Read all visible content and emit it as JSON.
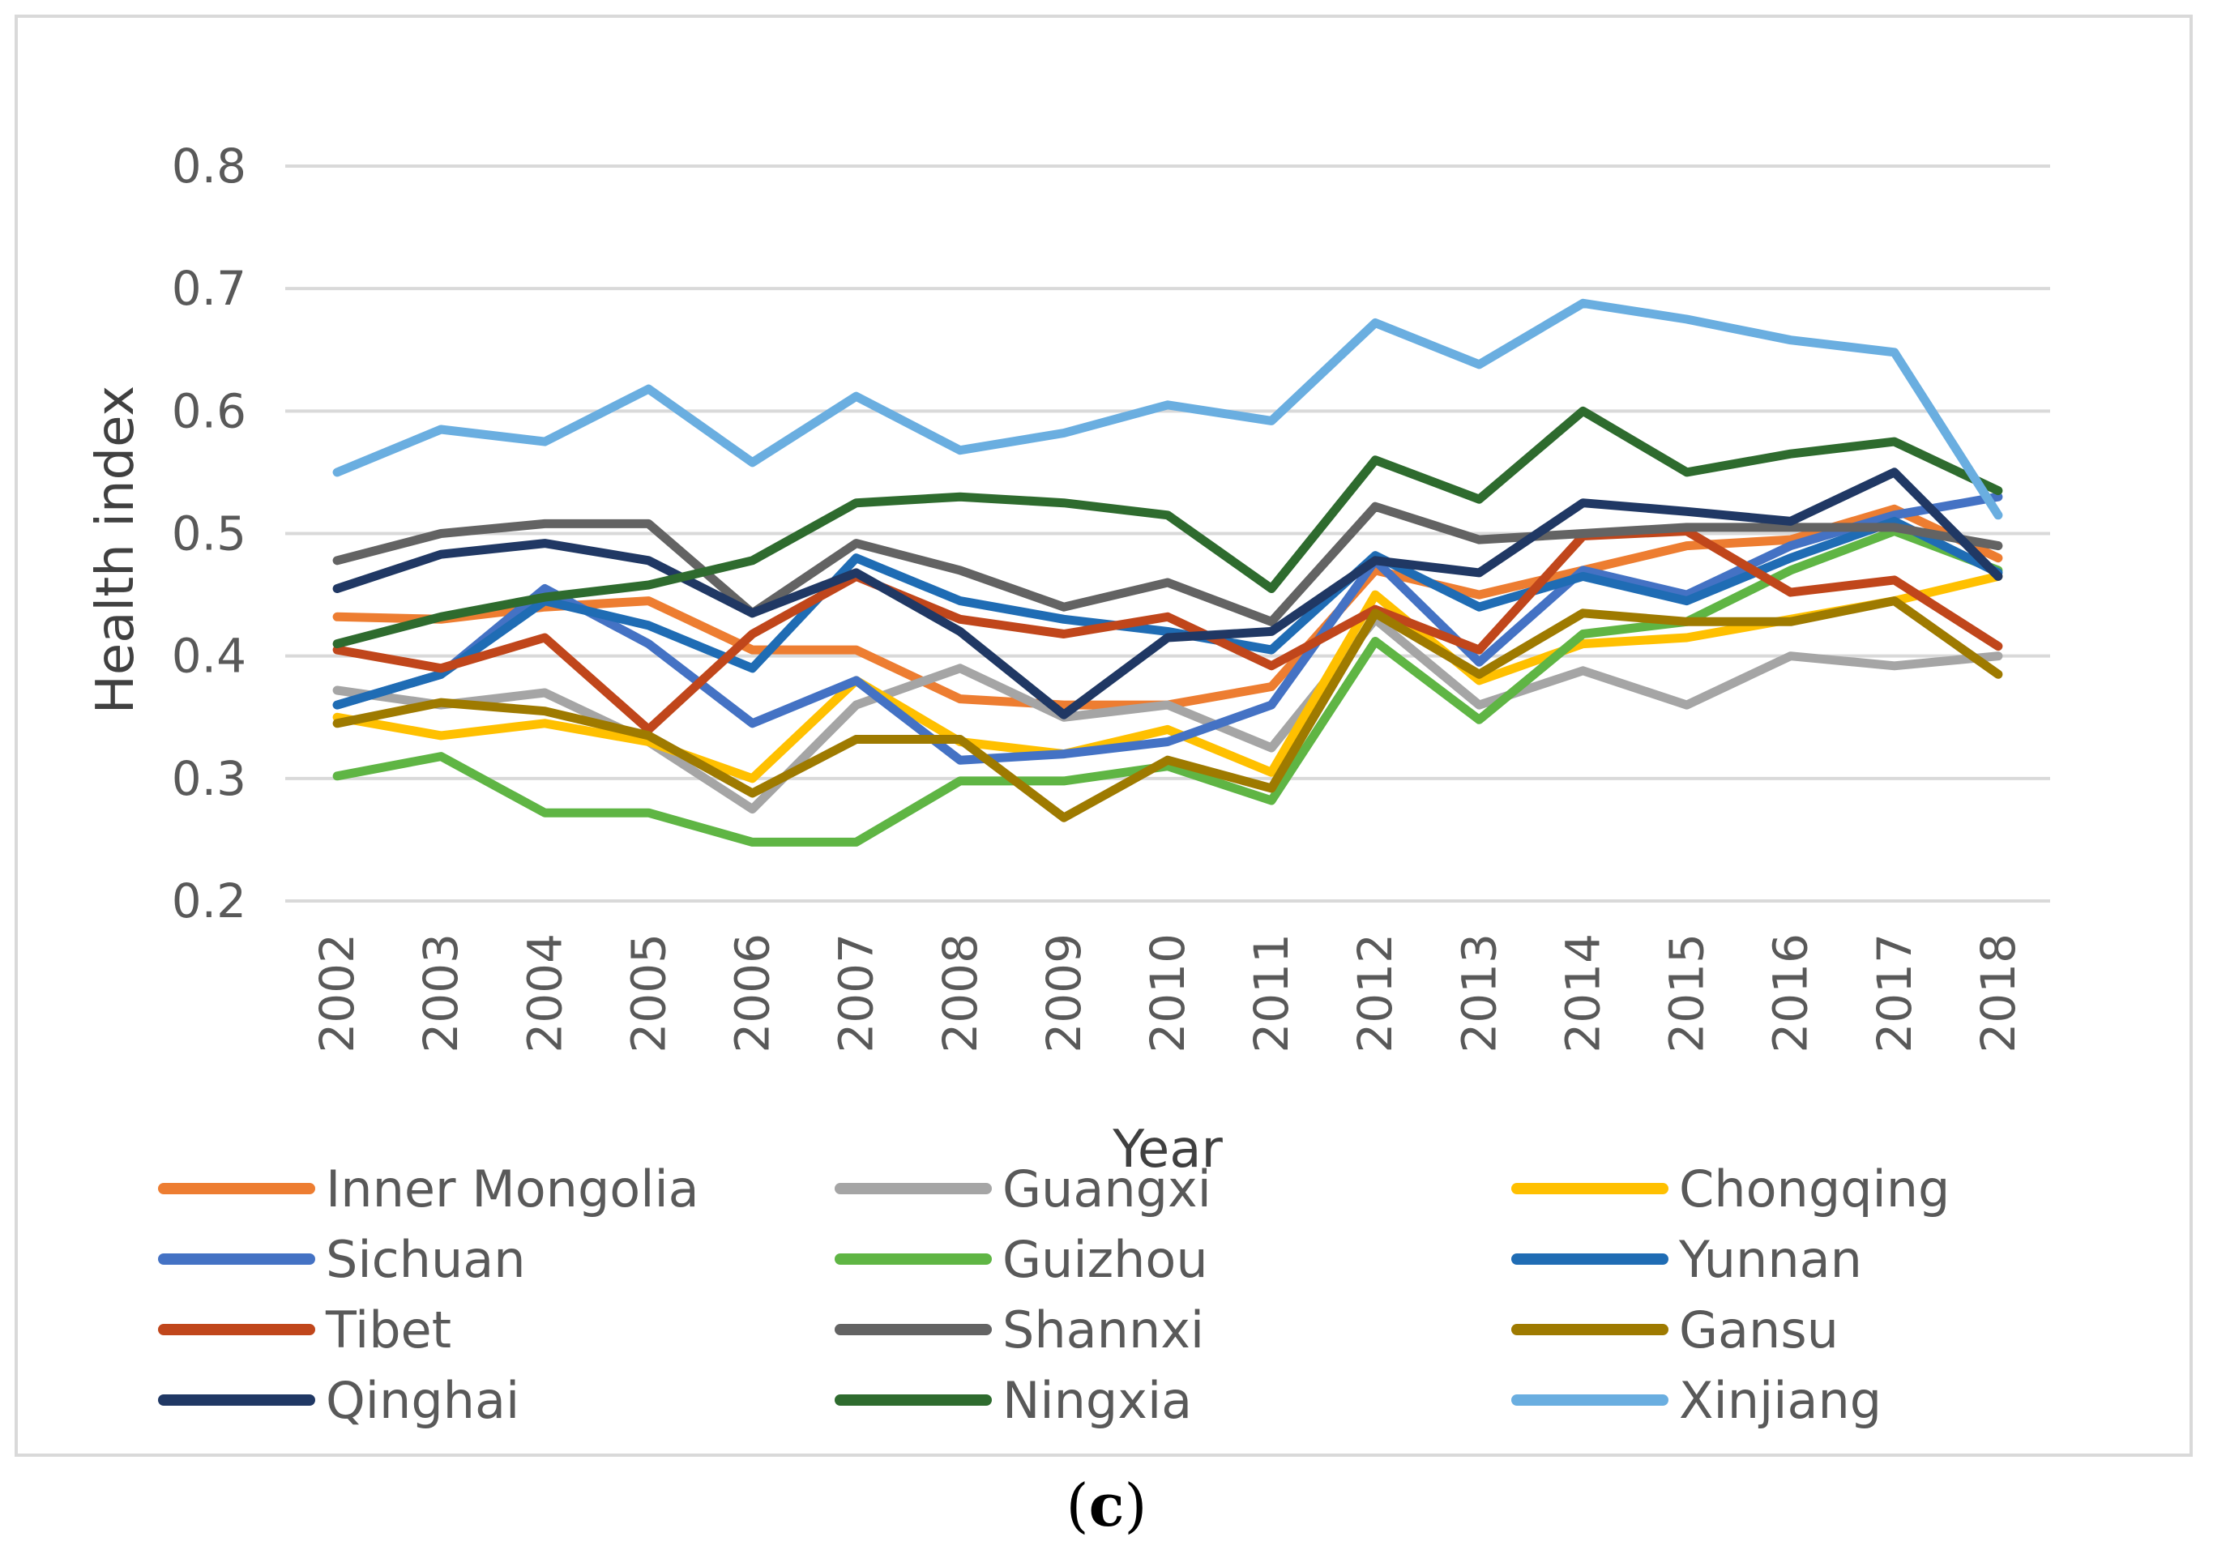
{
  "chart_data": {
    "type": "line",
    "title": "",
    "xlabel": "Year",
    "ylabel": "Health index",
    "ylim": [
      0.2,
      0.8
    ],
    "yticks": [
      "0.2",
      "0.3",
      "0.4",
      "0.5",
      "0.6",
      "0.7",
      "0.8"
    ],
    "grid": true,
    "legend_position": "bottom",
    "categories": [
      "2002",
      "2003",
      "2004",
      "2005",
      "2006",
      "2007",
      "2008",
      "2009",
      "2010",
      "2011",
      "2012",
      "2013",
      "2014",
      "2015",
      "2016",
      "2017",
      "2018"
    ],
    "series": [
      {
        "name": "Inner Mongolia",
        "color": "#ED7D31",
        "values": [
          0.432,
          0.43,
          0.44,
          0.445,
          0.405,
          0.405,
          0.365,
          0.36,
          0.36,
          0.375,
          0.47,
          0.45,
          0.47,
          0.49,
          0.495,
          0.52,
          0.48
        ]
      },
      {
        "name": "Guangxi",
        "color": "#A5A5A5",
        "values": [
          0.372,
          0.36,
          0.37,
          0.33,
          0.275,
          0.36,
          0.39,
          0.35,
          0.36,
          0.325,
          0.43,
          0.36,
          0.388,
          0.36,
          0.4,
          0.392,
          0.4
        ]
      },
      {
        "name": "Chongqing",
        "color": "#FFC000",
        "values": [
          0.35,
          0.335,
          0.345,
          0.33,
          0.3,
          0.38,
          0.33,
          0.32,
          0.34,
          0.305,
          0.45,
          0.38,
          0.41,
          0.415,
          0.43,
          0.445,
          0.465
        ]
      },
      {
        "name": "Sichuan",
        "color": "#4472C4",
        "values": [
          0.36,
          0.385,
          0.455,
          0.41,
          0.345,
          0.38,
          0.315,
          0.32,
          0.33,
          0.36,
          0.478,
          0.395,
          0.47,
          0.45,
          0.49,
          0.515,
          0.53
        ]
      },
      {
        "name": "Guizhou",
        "color": "#5FB544",
        "values": [
          0.302,
          0.318,
          0.272,
          0.272,
          0.248,
          0.248,
          0.298,
          0.298,
          0.31,
          0.282,
          0.412,
          0.348,
          0.418,
          0.428,
          0.47,
          0.502,
          0.47
        ]
      },
      {
        "name": "Yunnan",
        "color": "#1F6CB4",
        "values": [
          0.36,
          0.385,
          0.445,
          0.425,
          0.39,
          0.48,
          0.445,
          0.43,
          0.42,
          0.405,
          0.482,
          0.44,
          0.465,
          0.445,
          0.48,
          0.51,
          0.468
        ]
      },
      {
        "name": "Tibet",
        "color": "#C0461B",
        "values": [
          0.405,
          0.39,
          0.415,
          0.34,
          0.418,
          0.465,
          0.43,
          0.418,
          0.432,
          0.392,
          0.438,
          0.405,
          0.498,
          0.502,
          0.452,
          0.462,
          0.408
        ]
      },
      {
        "name": "Shannxi",
        "color": "#636363",
        "values": [
          0.478,
          0.5,
          0.508,
          0.508,
          0.435,
          0.492,
          0.47,
          0.44,
          0.46,
          0.428,
          0.522,
          0.495,
          0.5,
          0.505,
          0.505,
          0.505,
          0.49
        ]
      },
      {
        "name": "Gansu",
        "color": "#9E7A00",
        "values": [
          0.345,
          0.362,
          0.355,
          0.335,
          0.288,
          0.332,
          0.332,
          0.268,
          0.315,
          0.292,
          0.435,
          0.385,
          0.435,
          0.428,
          0.428,
          0.445,
          0.385
        ]
      },
      {
        "name": "Qinghai",
        "color": "#203864",
        "values": [
          0.455,
          0.483,
          0.492,
          0.478,
          0.435,
          0.468,
          0.42,
          0.352,
          0.415,
          0.42,
          0.478,
          0.468,
          0.525,
          0.518,
          0.51,
          0.55,
          0.465
        ]
      },
      {
        "name": "Ningxia",
        "color": "#2E6B2E",
        "values": [
          0.41,
          0.432,
          0.448,
          0.458,
          0.478,
          0.525,
          0.53,
          0.525,
          0.515,
          0.455,
          0.56,
          0.528,
          0.6,
          0.55,
          0.565,
          0.575,
          0.535
        ]
      },
      {
        "name": "Xinjiang",
        "color": "#6AAEE0",
        "values": [
          0.55,
          0.585,
          0.575,
          0.618,
          0.558,
          0.612,
          0.568,
          0.582,
          0.605,
          0.592,
          0.672,
          0.638,
          0.688,
          0.675,
          0.658,
          0.648,
          0.515
        ]
      }
    ]
  },
  "caption": {
    "open": "(",
    "letter": "c",
    "close": ")"
  }
}
